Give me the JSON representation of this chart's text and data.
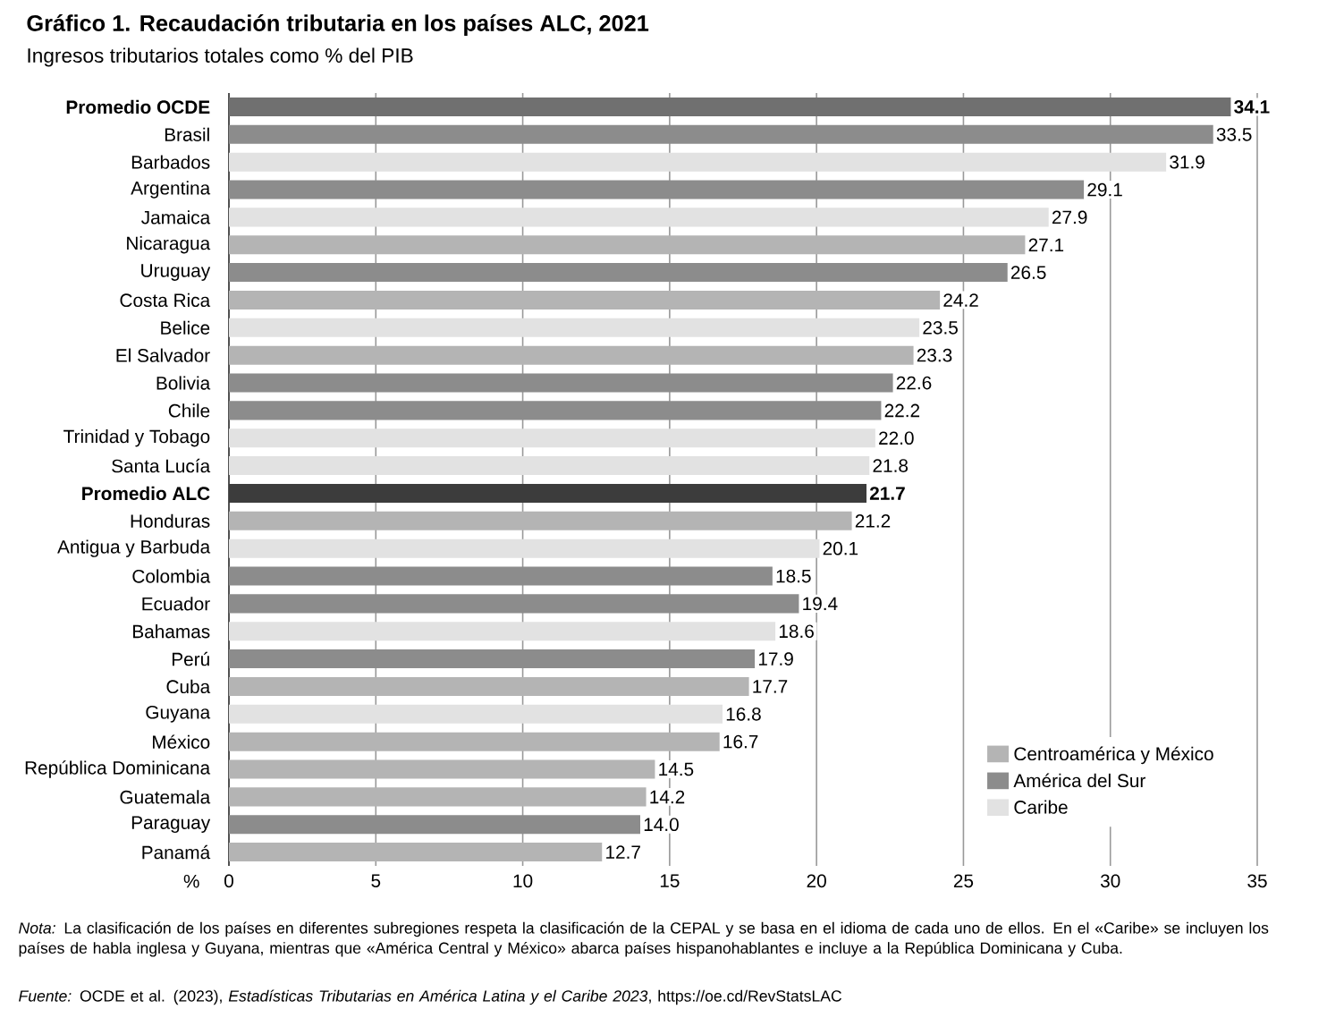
{
  "chart_data": {
    "type": "bar",
    "orientation": "horizontal",
    "title": "**Gráfico 1.** **Recaudación tributaria en los países ALC, 2021**",
    "subtitle": "Ingresos tributarios totales como % del PIB",
    "xlabel": "%",
    "categories": [
      "Promedio OCDE",
      "Brasil",
      "Barbados",
      "Argentina",
      "Jamaica",
      "Nicaragua",
      "Uruguay",
      "Costa Rica",
      "Belice",
      "El Salvador",
      "Bolivia",
      "Chile",
      "Trinidad y Tobago",
      "Santa Lucía",
      "Promedio ALC",
      "Honduras",
      "Antigua y Barbuda",
      "Colombia",
      "Ecuador",
      "Bahamas",
      "Perú",
      "Cuba",
      "Guyana",
      "México",
      "República Dominicana",
      "Guatemala",
      "Paraguay",
      "Panamá"
    ],
    "series": [
      {
        "name": "Centroamérica y México",
        "color": "#b4b4b4",
        "values": [
          null,
          null,
          null,
          null,
          null,
          27.1,
          null,
          24.2,
          null,
          23.3,
          null,
          null,
          null,
          null,
          null,
          21.2,
          null,
          null,
          null,
          null,
          null,
          17.7,
          null,
          16.7,
          14.5,
          14.2,
          null,
          12.7
        ],
        "value_labels": [
          null,
          null,
          null,
          null,
          null,
          "27.1",
          null,
          "24.2",
          null,
          "23.3",
          null,
          null,
          null,
          null,
          null,
          "21.2",
          null,
          null,
          null,
          null,
          null,
          "17.7",
          null,
          "16.7",
          "14.5",
          "14.2",
          null,
          "12.7"
        ]
      },
      {
        "name": "América del Sur",
        "color": "#8c8c8c",
        "values": [
          null,
          33.5,
          null,
          29.1,
          null,
          null,
          26.5,
          null,
          null,
          null,
          22.6,
          22.2,
          null,
          null,
          null,
          null,
          null,
          18.5,
          19.4,
          null,
          17.9,
          null,
          null,
          null,
          null,
          null,
          14.0,
          null
        ],
        "value_labels": [
          null,
          "33.5",
          null,
          "29.1",
          null,
          null,
          "26.5",
          null,
          null,
          null,
          "22.6",
          "22.2",
          null,
          null,
          null,
          null,
          null,
          "18.5",
          "19.4",
          null,
          "17.9",
          null,
          null,
          null,
          null,
          null,
          "14.0",
          null
        ]
      },
      {
        "name": "Caribe",
        "color": "#e2e2e2",
        "values": [
          null,
          null,
          31.9,
          null,
          27.9,
          null,
          null,
          null,
          23.5,
          null,
          null,
          null,
          22.0,
          21.8,
          null,
          null,
          20.1,
          null,
          null,
          18.6,
          null,
          null,
          16.8,
          null,
          null,
          null,
          null,
          null
        ],
        "value_labels": [
          null,
          null,
          "31.9",
          null,
          "27.9",
          null,
          null,
          null,
          "23.5",
          null,
          null,
          null,
          "22.0",
          "21.8",
          null,
          null,
          "20.1",
          null,
          null,
          "18.6",
          null,
          null,
          "16.8",
          null,
          null,
          null,
          null,
          null
        ]
      },
      {
        "color": "#707070",
        "values": [
          34.1,
          null,
          null,
          null,
          null,
          null,
          null,
          null,
          null,
          null,
          null,
          null,
          null,
          null,
          null,
          null,
          null,
          null,
          null,
          null,
          null,
          null,
          null,
          null,
          null,
          null,
          null,
          null
        ],
        "value_labels": [
          "**34.1**",
          null,
          null,
          null,
          null,
          null,
          null,
          null,
          null,
          null,
          null,
          null,
          null,
          null,
          null,
          null,
          null,
          null,
          null,
          null,
          null,
          null,
          null,
          null,
          null,
          null,
          null,
          null
        ]
      },
      {
        "color": "#3c3c3c",
        "values": [
          null,
          null,
          null,
          null,
          null,
          null,
          null,
          null,
          null,
          null,
          null,
          null,
          null,
          null,
          21.7,
          null,
          null,
          null,
          null,
          null,
          null,
          null,
          null,
          null,
          null,
          null,
          null,
          null
        ],
        "value_labels": [
          null,
          null,
          null,
          null,
          null,
          null,
          null,
          null,
          null,
          null,
          null,
          null,
          null,
          null,
          "**21.7**",
          null,
          null,
          null,
          null,
          null,
          null,
          null,
          null,
          null,
          null,
          null,
          null,
          null
        ]
      }
    ],
    "xlim": [
      0,
      35
    ],
    "xticks": [
      0,
      5,
      10,
      15,
      20,
      25,
      30,
      35
    ],
    "grid": "x",
    "legend": "bottom right",
    "annotations": [
      "*Nota:* La clasificación de los países en diferentes subregiones respeta la clasificación de la CEPAL y se basa en el idioma de cada uno de ellos. En el «Caribe» se incluyen los países de habla inglesa y Guyana, mientras que «América Central y México» abarca países hispanohablantes e incluye a la República Dominicana y Cuba.",
      "*Fuente:* OCDE et al. (2023), *Estadísticas Tributarias en América Latina y el Caribe 2023*, https://oe.cd/RevStatsLAC"
    ]
  }
}
